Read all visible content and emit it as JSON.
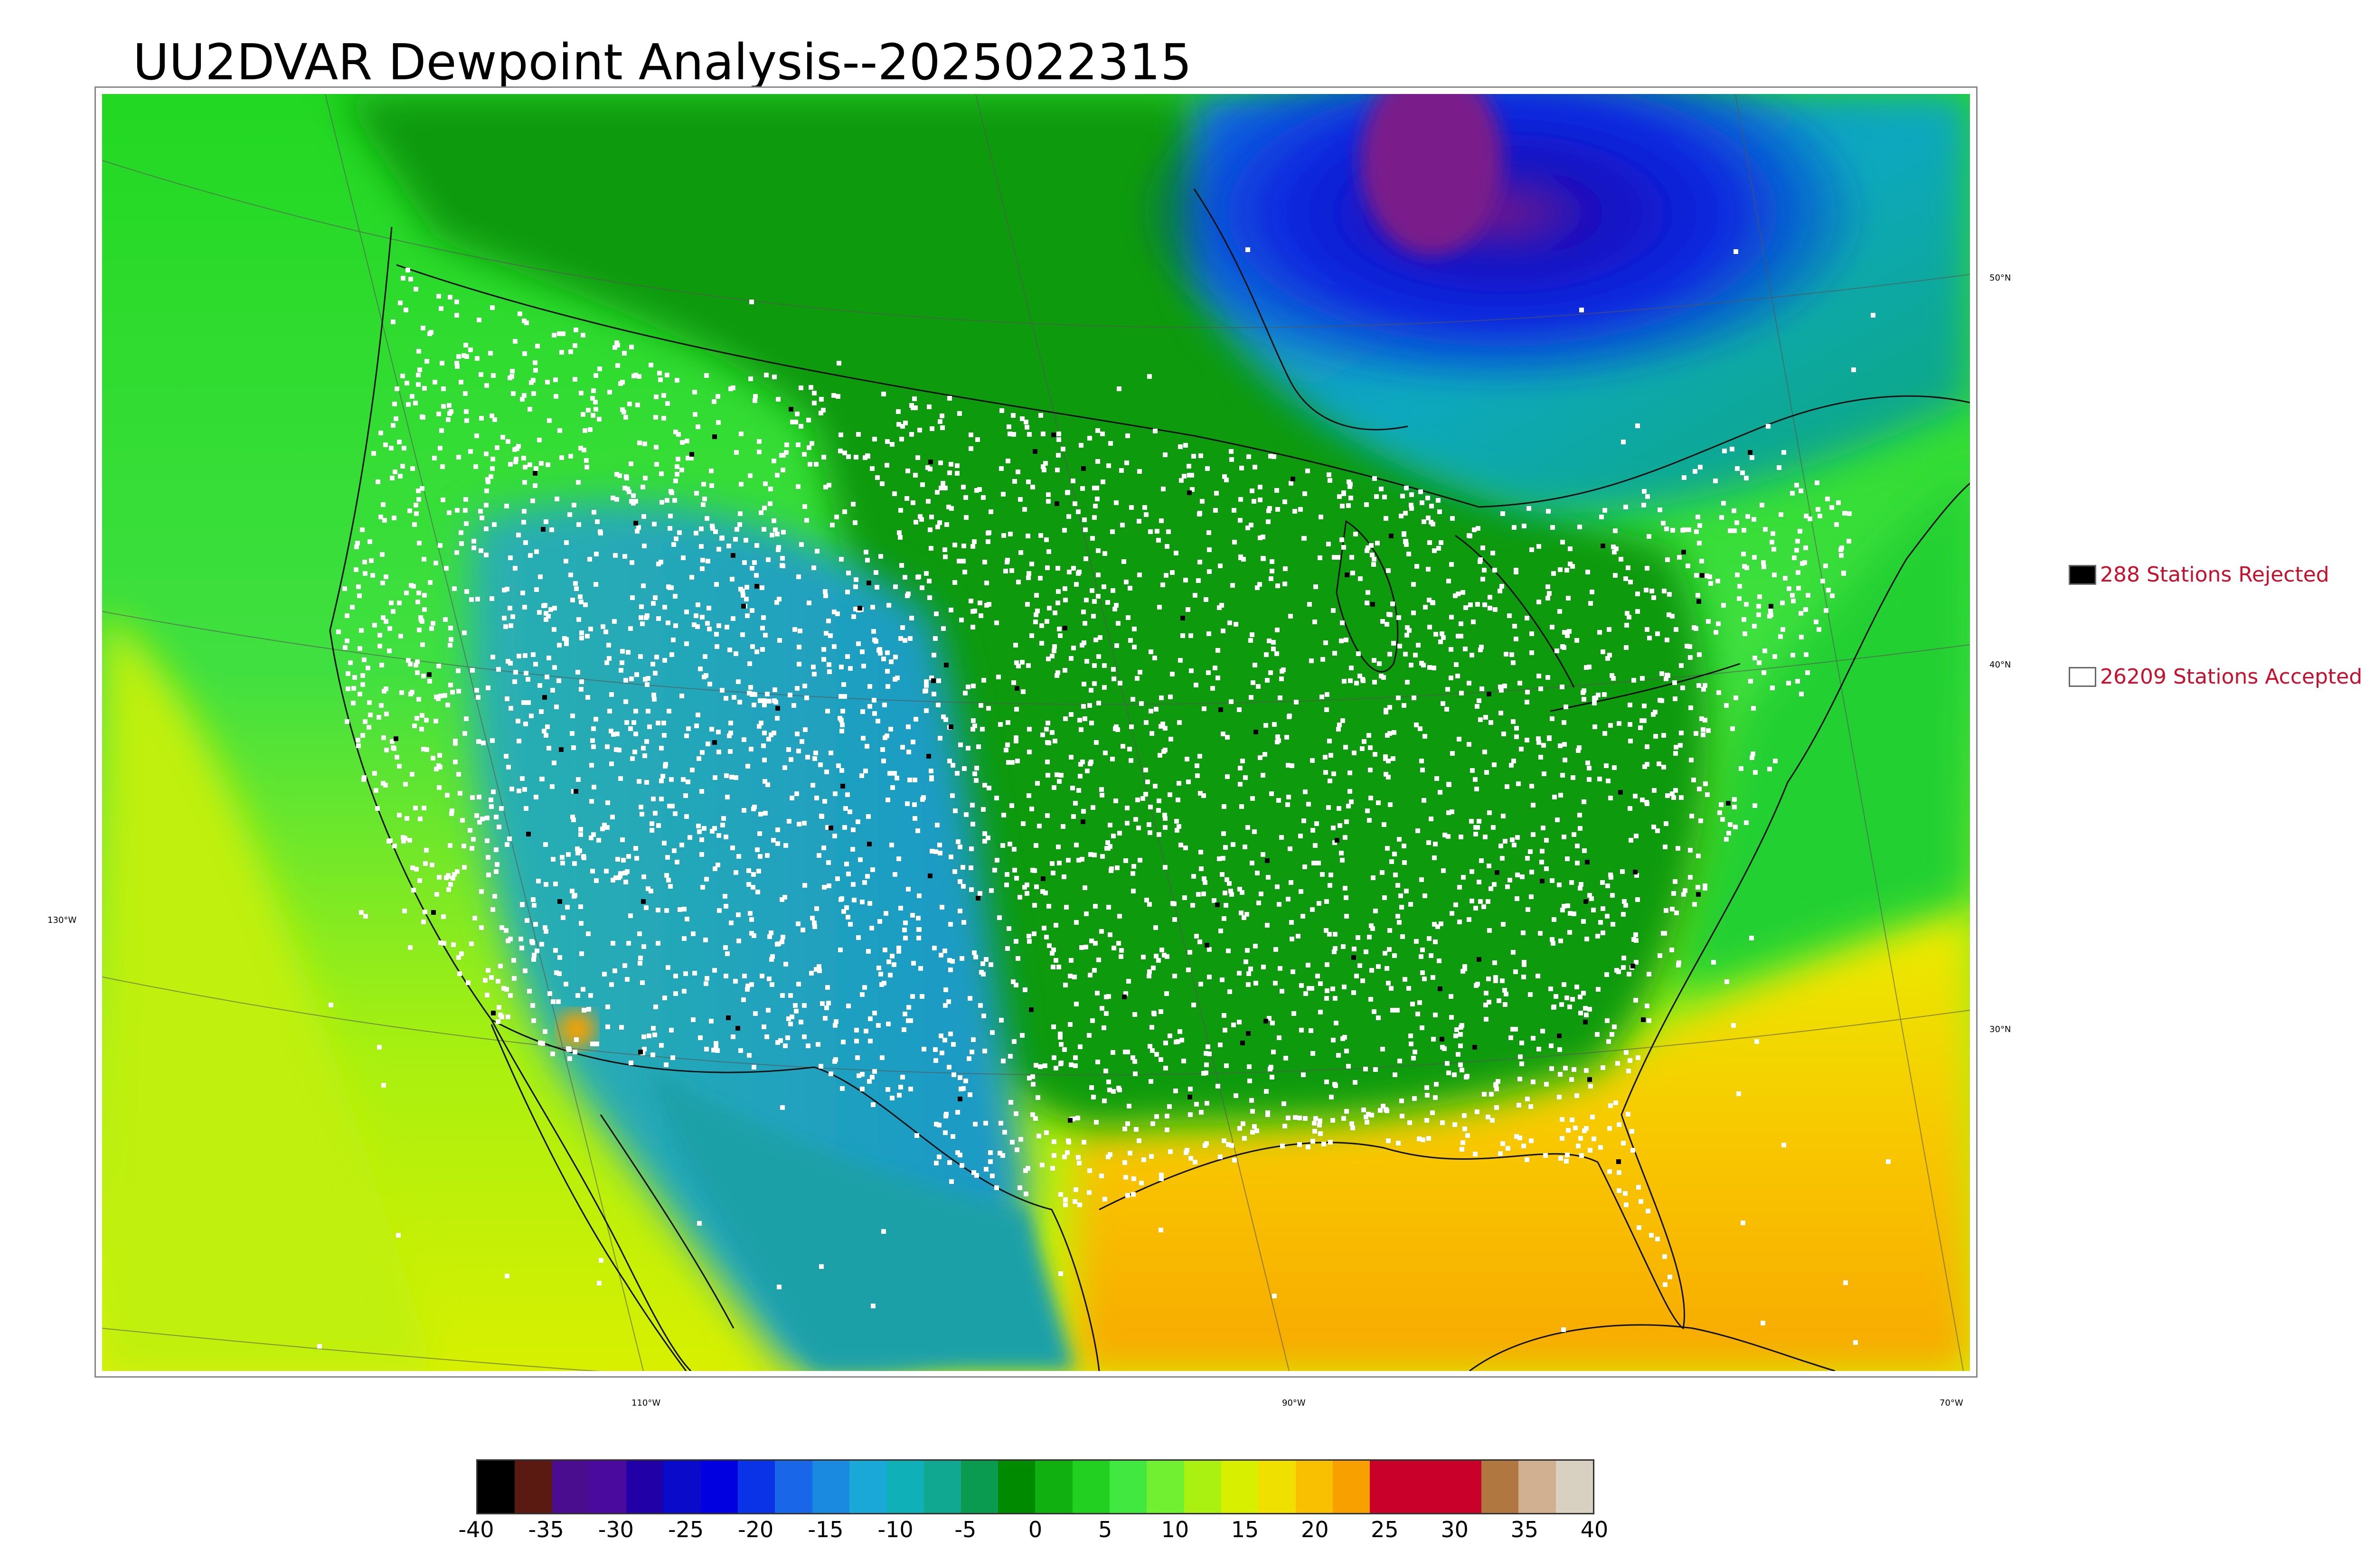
{
  "title": "UU2DVAR Dewpoint Analysis--2025022315",
  "lat_labels": [
    "50°N",
    "40°N",
    "30°N"
  ],
  "lon_labels": [
    "130°W",
    "110°W",
    "90°W",
    "70°W"
  ],
  "legend": {
    "rejected": {
      "label": "288 Stations Rejected",
      "color": "#000000"
    },
    "accepted": {
      "label": "26209 Stations Accepted",
      "color": "#ffffff"
    }
  },
  "colorbar": {
    "min": -40,
    "max": 40,
    "ticks": [
      "-40",
      "-35",
      "-30",
      "-25",
      "-20",
      "-15",
      "-10",
      "-5",
      "0",
      "5",
      "10",
      "15",
      "20",
      "25",
      "30",
      "35",
      "40"
    ],
    "colors": [
      "#000000",
      "#5a1a12",
      "#4b0d8f",
      "#4a0a9e",
      "#2200a8",
      "#0a0acb",
      "#0000e0",
      "#0a33e8",
      "#1a66e8",
      "#1a8ae0",
      "#1aa8d8",
      "#10b0b8",
      "#10a890",
      "#0a9a50",
      "#008a00",
      "#10b010",
      "#22d022",
      "#40e840",
      "#70f030",
      "#aaf010",
      "#d8f000",
      "#f0e000",
      "#f8c000",
      "#f8a000",
      "#c8002a",
      "#c8002a",
      "#c8002a",
      "#b07840",
      "#d0b090",
      "#d8d0c0"
    ]
  }
}
